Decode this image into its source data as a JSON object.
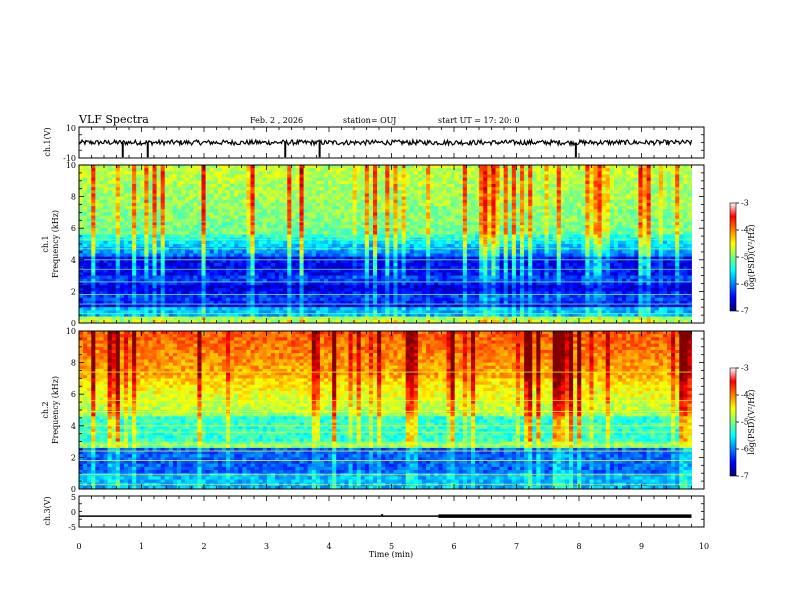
{
  "header": {
    "title": "VLF Spectra",
    "date": "Feb. 2  , 2026",
    "station": "station= OUJ",
    "start": "start  UT  =   17: 20: 0"
  },
  "chart_data": [
    {
      "type": "line",
      "panel": "ch1-waveform",
      "ylabel": "ch.1(V)",
      "ylim": [
        -10,
        10
      ],
      "yticks": [
        "10",
        "-10"
      ],
      "xlim": [
        0,
        10
      ],
      "baseline": 0,
      "spikes_min": [
        0.7,
        1.1,
        3.3,
        3.85,
        7.95
      ],
      "data_end_min": 9.8
    },
    {
      "type": "heatmap",
      "panel": "ch1-spectrogram",
      "ylabel": "Frequency (kHz)",
      "channel_label": "ch.1",
      "ylim": [
        0,
        10
      ],
      "yticks": [
        "0",
        "2",
        "4",
        "6",
        "8",
        "10"
      ],
      "xlim": [
        0,
        10
      ],
      "data_end_min": 9.8,
      "colorbar": {
        "label": "log(PSD)(V²/Hz)",
        "range": [
          -7,
          -3
        ],
        "ticks": [
          "-3",
          "-4",
          "-5",
          "-6",
          "-7"
        ]
      }
    },
    {
      "type": "heatmap",
      "panel": "ch2-spectrogram",
      "ylabel": "Frequency (kHz)",
      "channel_label": "ch.2",
      "ylim": [
        0,
        10
      ],
      "yticks": [
        "0",
        "2",
        "4",
        "6",
        "8",
        "10"
      ],
      "xlim": [
        0,
        10
      ],
      "data_end_min": 9.8,
      "colorbar": {
        "label": "log(PSD)(V²/Hz)",
        "range": [
          -7,
          -3
        ],
        "ticks": [
          "-3",
          "-4",
          "-5",
          "-6",
          "-7"
        ]
      }
    },
    {
      "type": "line",
      "panel": "ch3-waveform",
      "ylabel": "ch.3(V)",
      "ylim": [
        -5,
        5
      ],
      "yticks": [
        "5",
        "0",
        "-5"
      ],
      "xlim": [
        0,
        10
      ],
      "baseline": -1.5,
      "data_end_min": 9.8,
      "xlabel": "Time  (min)",
      "xticks": [
        "0",
        "1",
        "2",
        "3",
        "4",
        "5",
        "6",
        "7",
        "8",
        "9",
        "10"
      ]
    }
  ],
  "colors": {
    "jet": [
      "#00007f",
      "#0000ff",
      "#007fff",
      "#00ffff",
      "#7fff7f",
      "#ffff00",
      "#ff7f00",
      "#ff0000",
      "#7f0000"
    ]
  }
}
